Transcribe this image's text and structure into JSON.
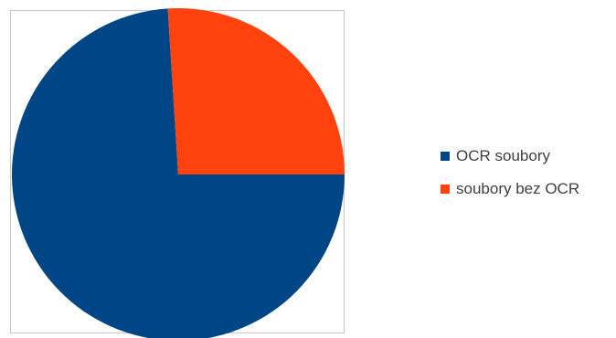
{
  "chart_data": {
    "type": "pie",
    "title": "",
    "legend_position": "right",
    "slices": [
      {
        "label": "OCR soubory",
        "value": 74,
        "color": "#004586"
      },
      {
        "label": "soubory bez OCR",
        "value": 26,
        "color": "#ff420e"
      }
    ]
  }
}
